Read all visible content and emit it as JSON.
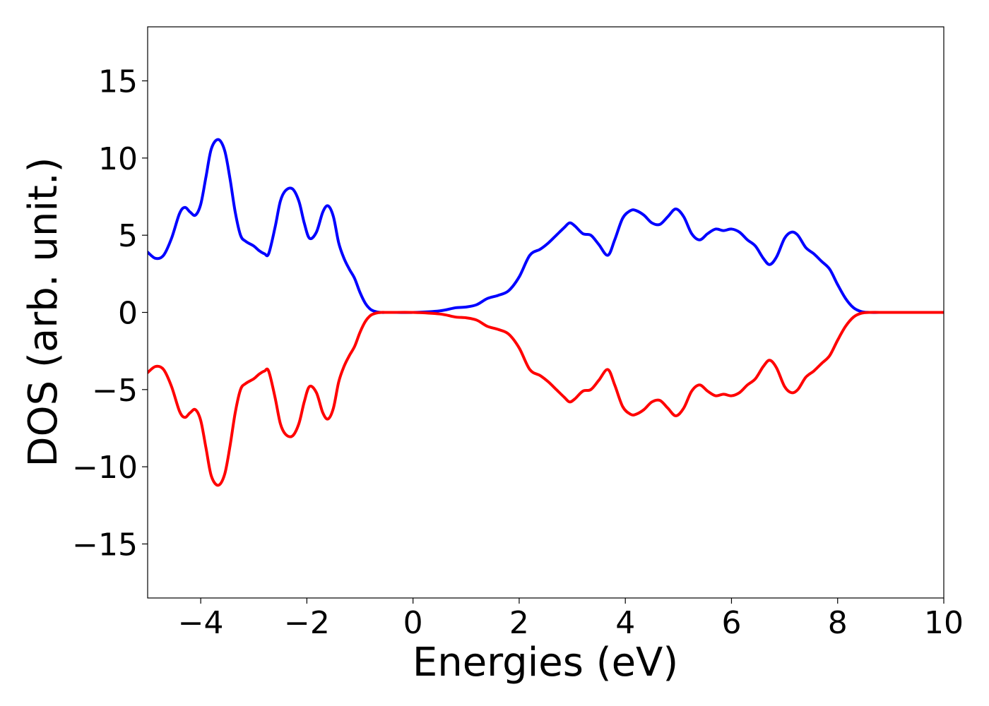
{
  "chart_data": {
    "type": "line",
    "title": "",
    "xlabel": "Energies (eV)",
    "ylabel": "DOS (arb. unit.)",
    "xlim": [
      -5,
      10
    ],
    "ylim": [
      -18.5,
      18.5
    ],
    "xticks": [
      -4,
      -2,
      0,
      2,
      4,
      6,
      8,
      10
    ],
    "xtick_labels": [
      "−4",
      "−2",
      "0",
      "2",
      "4",
      "6",
      "8",
      "10"
    ],
    "yticks": [
      15,
      10,
      5,
      0,
      -5,
      -10,
      -15
    ],
    "ytick_labels": [
      "15",
      "10",
      "5",
      "0",
      "−5",
      "−10",
      "−15"
    ],
    "grid": false,
    "legend": "none",
    "series": [
      {
        "color": "#0000ff",
        "x": [
          -5.0,
          -4.85,
          -4.7,
          -4.55,
          -4.4,
          -4.3,
          -4.2,
          -4.1,
          -4.0,
          -3.9,
          -3.8,
          -3.67,
          -3.55,
          -3.45,
          -3.35,
          -3.25,
          -3.15,
          -3.0,
          -2.9,
          -2.8,
          -2.72,
          -2.6,
          -2.5,
          -2.4,
          -2.27,
          -2.15,
          -2.05,
          -1.95,
          -1.82,
          -1.7,
          -1.6,
          -1.5,
          -1.4,
          -1.3,
          -1.2,
          -1.1,
          -1.0,
          -0.9,
          -0.8,
          -0.7,
          -0.6,
          -0.5,
          -0.4,
          0.0,
          0.5,
          0.8,
          1.0,
          1.2,
          1.4,
          1.6,
          1.8,
          2.0,
          2.2,
          2.4,
          2.55,
          2.7,
          2.85,
          2.95,
          3.05,
          3.2,
          3.35,
          3.5,
          3.67,
          3.8,
          3.95,
          4.1,
          4.2,
          4.35,
          4.5,
          4.65,
          4.8,
          4.95,
          5.1,
          5.25,
          5.4,
          5.55,
          5.7,
          5.85,
          6.0,
          6.15,
          6.3,
          6.45,
          6.6,
          6.72,
          6.85,
          7.0,
          7.13,
          7.25,
          7.4,
          7.55,
          7.7,
          7.85,
          8.0,
          8.15,
          8.3,
          8.45,
          8.6,
          9.0,
          10.0
        ],
        "y": [
          3.9,
          3.5,
          3.7,
          4.8,
          6.4,
          6.8,
          6.5,
          6.3,
          7.0,
          8.8,
          10.6,
          11.2,
          10.5,
          8.7,
          6.5,
          5.0,
          4.6,
          4.3,
          4.0,
          3.8,
          3.8,
          5.5,
          7.2,
          7.9,
          8.0,
          7.2,
          5.8,
          4.8,
          5.2,
          6.5,
          6.9,
          6.2,
          4.5,
          3.5,
          2.8,
          2.2,
          1.3,
          0.6,
          0.2,
          0.05,
          0.0,
          0.0,
          0.0,
          0.0,
          0.1,
          0.3,
          0.35,
          0.5,
          0.9,
          1.1,
          1.4,
          2.3,
          3.7,
          4.1,
          4.5,
          5.0,
          5.5,
          5.8,
          5.6,
          5.1,
          5.0,
          4.4,
          3.7,
          4.7,
          6.1,
          6.6,
          6.6,
          6.3,
          5.8,
          5.7,
          6.2,
          6.7,
          6.2,
          5.1,
          4.7,
          5.1,
          5.4,
          5.3,
          5.4,
          5.2,
          4.7,
          4.3,
          3.5,
          3.1,
          3.6,
          4.8,
          5.2,
          5.0,
          4.2,
          3.8,
          3.3,
          2.8,
          1.8,
          0.9,
          0.3,
          0.05,
          0.0,
          0.0,
          0.0
        ]
      },
      {
        "color": "#ff0000",
        "x": [
          -5.0,
          -4.85,
          -4.7,
          -4.55,
          -4.4,
          -4.3,
          -4.2,
          -4.1,
          -4.0,
          -3.9,
          -3.8,
          -3.67,
          -3.55,
          -3.45,
          -3.35,
          -3.25,
          -3.15,
          -3.0,
          -2.9,
          -2.8,
          -2.72,
          -2.6,
          -2.5,
          -2.4,
          -2.27,
          -2.15,
          -2.05,
          -1.95,
          -1.82,
          -1.7,
          -1.6,
          -1.5,
          -1.4,
          -1.3,
          -1.2,
          -1.1,
          -1.0,
          -0.9,
          -0.8,
          -0.7,
          -0.6,
          -0.5,
          -0.4,
          0.0,
          0.5,
          0.8,
          1.0,
          1.2,
          1.4,
          1.6,
          1.8,
          2.0,
          2.2,
          2.4,
          2.55,
          2.7,
          2.85,
          2.95,
          3.05,
          3.2,
          3.35,
          3.5,
          3.67,
          3.8,
          3.95,
          4.1,
          4.2,
          4.35,
          4.5,
          4.65,
          4.8,
          4.95,
          5.1,
          5.25,
          5.4,
          5.55,
          5.7,
          5.85,
          6.0,
          6.15,
          6.3,
          6.45,
          6.6,
          6.72,
          6.85,
          7.0,
          7.13,
          7.25,
          7.4,
          7.55,
          7.7,
          7.85,
          8.0,
          8.15,
          8.3,
          8.45,
          8.6,
          9.0,
          10.0
        ],
        "y": [
          -3.9,
          -3.5,
          -3.7,
          -4.8,
          -6.4,
          -6.8,
          -6.5,
          -6.3,
          -7.0,
          -8.8,
          -10.6,
          -11.2,
          -10.5,
          -8.7,
          -6.5,
          -5.0,
          -4.6,
          -4.3,
          -4.0,
          -3.8,
          -3.8,
          -5.5,
          -7.2,
          -7.9,
          -8.0,
          -7.2,
          -5.8,
          -4.8,
          -5.2,
          -6.5,
          -6.9,
          -6.2,
          -4.5,
          -3.5,
          -2.8,
          -2.2,
          -1.3,
          -0.6,
          -0.2,
          -0.05,
          0.0,
          0.0,
          0.0,
          0.0,
          -0.1,
          -0.3,
          -0.35,
          -0.5,
          -0.9,
          -1.1,
          -1.4,
          -2.3,
          -3.7,
          -4.1,
          -4.5,
          -5.0,
          -5.5,
          -5.8,
          -5.6,
          -5.1,
          -5.0,
          -4.4,
          -3.7,
          -4.7,
          -6.1,
          -6.6,
          -6.6,
          -6.3,
          -5.8,
          -5.7,
          -6.2,
          -6.7,
          -6.2,
          -5.1,
          -4.7,
          -5.1,
          -5.4,
          -5.3,
          -5.4,
          -5.2,
          -4.7,
          -4.3,
          -3.5,
          -3.1,
          -3.6,
          -4.8,
          -5.2,
          -5.0,
          -4.2,
          -3.8,
          -3.3,
          -2.8,
          -1.8,
          -0.9,
          -0.3,
          -0.05,
          0.0,
          0.0,
          0.0
        ]
      }
    ]
  }
}
